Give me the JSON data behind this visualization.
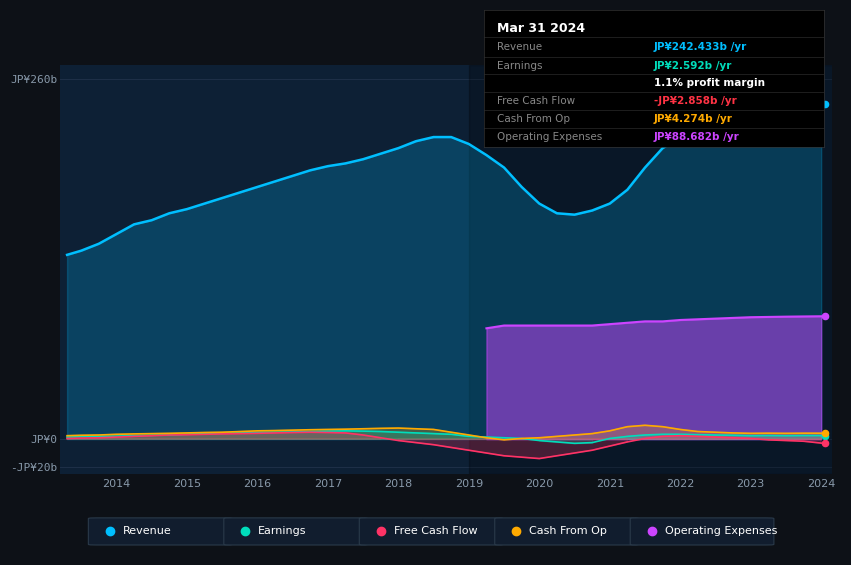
{
  "bg_color": "#0d1117",
  "plot_bg": "#0d2035",
  "dark_bg": "#081525",
  "title": "Mar 31 2024",
  "years": [
    2013.3,
    2013.5,
    2013.75,
    2014.0,
    2014.25,
    2014.5,
    2014.75,
    2015.0,
    2015.25,
    2015.5,
    2015.75,
    2016.0,
    2016.25,
    2016.5,
    2016.75,
    2017.0,
    2017.25,
    2017.5,
    2017.75,
    2018.0,
    2018.25,
    2018.5,
    2018.75,
    2019.0,
    2019.25,
    2019.5,
    2019.75,
    2020.0,
    2020.25,
    2020.5,
    2020.75,
    2021.0,
    2021.25,
    2021.5,
    2021.75,
    2022.0,
    2022.25,
    2022.5,
    2022.75,
    2023.0,
    2023.25,
    2023.5,
    2023.75,
    2024.0
  ],
  "revenue": [
    133,
    136,
    141,
    148,
    155,
    158,
    163,
    166,
    170,
    174,
    178,
    182,
    186,
    190,
    194,
    197,
    199,
    202,
    206,
    210,
    215,
    218,
    218,
    213,
    205,
    196,
    182,
    170,
    163,
    162,
    165,
    170,
    180,
    196,
    210,
    218,
    220,
    222,
    225,
    222,
    224,
    228,
    236,
    242
  ],
  "earnings": [
    1.5,
    1.8,
    2.0,
    2.2,
    2.5,
    2.8,
    3.0,
    3.5,
    4.0,
    4.2,
    4.5,
    4.8,
    5.0,
    5.2,
    5.5,
    5.8,
    6.0,
    5.8,
    5.5,
    5.0,
    4.5,
    4.0,
    3.5,
    2.0,
    1.5,
    1.0,
    0.5,
    -1.0,
    -2.0,
    -3.0,
    -2.5,
    0.5,
    2.0,
    3.0,
    3.5,
    3.5,
    3.2,
    3.0,
    2.8,
    2.5,
    2.6,
    2.5,
    2.6,
    2.592
  ],
  "free_cash_flow": [
    0.5,
    0.8,
    1.0,
    1.5,
    2.0,
    2.5,
    3.0,
    3.2,
    3.5,
    3.8,
    4.0,
    4.2,
    4.5,
    4.8,
    5.0,
    4.8,
    4.5,
    3.0,
    1.0,
    -1.0,
    -2.5,
    -4.0,
    -6.0,
    -8.0,
    -10.0,
    -12.0,
    -13.0,
    -14.0,
    -12.0,
    -10.0,
    -8.0,
    -5.0,
    -2.0,
    0.5,
    2.0,
    2.5,
    2.0,
    1.5,
    1.0,
    0.5,
    -0.5,
    -1.0,
    -1.5,
    -2.858
  ],
  "cash_from_op": [
    2.5,
    2.8,
    3.0,
    3.5,
    3.8,
    4.0,
    4.2,
    4.5,
    4.8,
    5.0,
    5.5,
    6.0,
    6.2,
    6.5,
    6.8,
    7.0,
    7.2,
    7.5,
    7.8,
    8.0,
    7.5,
    7.0,
    5.0,
    3.0,
    1.0,
    -0.5,
    0.5,
    1.0,
    2.0,
    3.0,
    4.0,
    6.0,
    9.0,
    10.0,
    9.0,
    7.0,
    5.5,
    5.0,
    4.5,
    4.2,
    4.3,
    4.2,
    4.3,
    4.274
  ],
  "operating_expenses": [
    0,
    0,
    0,
    0,
    0,
    0,
    0,
    0,
    0,
    0,
    0,
    0,
    0,
    0,
    0,
    0,
    0,
    0,
    0,
    0,
    0,
    0,
    0,
    0,
    80,
    82,
    82,
    82,
    82,
    82,
    82,
    83,
    84,
    85,
    85,
    86,
    86.5,
    87,
    87.5,
    88,
    88.2,
    88.4,
    88.55,
    88.682
  ],
  "op_exp_start_year": 2019.0,
  "ylim": [
    -25,
    270
  ],
  "ytick_vals": [
    -20,
    0,
    260
  ],
  "ytick_labels": [
    "-JP¥20b",
    "JP¥0",
    "JP¥260b"
  ],
  "xticks": [
    2014,
    2015,
    2016,
    2017,
    2018,
    2019,
    2020,
    2021,
    2022,
    2023,
    2024
  ],
  "colors": {
    "revenue": "#00bfff",
    "earnings": "#00ddbb",
    "free_cash_flow": "#ff3366",
    "cash_from_op": "#ffaa00",
    "operating_expenses": "#cc44ff"
  },
  "grid_color": "#1e3048",
  "tick_color": "#8899aa",
  "legend_items": [
    {
      "label": "Revenue",
      "color": "#00bfff"
    },
    {
      "label": "Earnings",
      "color": "#00ddbb"
    },
    {
      "label": "Free Cash Flow",
      "color": "#ff3366"
    },
    {
      "label": "Cash From Op",
      "color": "#ffaa00"
    },
    {
      "label": "Operating Expenses",
      "color": "#cc44ff"
    }
  ],
  "tooltip_rows": [
    {
      "label": "Revenue",
      "value": "JP¥242.433b /yr",
      "value_color": "#00bfff",
      "label_color": "#888888"
    },
    {
      "label": "Earnings",
      "value": "JP¥2.592b /yr",
      "value_color": "#00ddbb",
      "label_color": "#888888"
    },
    {
      "label": "",
      "value": "1.1% profit margin",
      "value_color": "#ffffff",
      "label_color": "#888888"
    },
    {
      "label": "Free Cash Flow",
      "value": "-JP¥2.858b /yr",
      "value_color": "#ff3344",
      "label_color": "#888888"
    },
    {
      "label": "Cash From Op",
      "value": "JP¥4.274b /yr",
      "value_color": "#ffaa00",
      "label_color": "#888888"
    },
    {
      "label": "Operating Expenses",
      "value": "JP¥88.682b /yr",
      "value_color": "#cc44ff",
      "label_color": "#888888"
    }
  ]
}
